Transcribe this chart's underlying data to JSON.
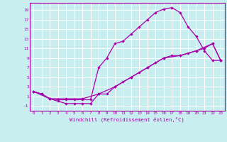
{
  "xlabel": "Windchill (Refroidissement éolien,°C)",
  "bg_color": "#c8eef0",
  "line_color": "#aa00aa",
  "xlim": [
    -0.5,
    23.5
  ],
  "ylim": [
    -2,
    20.5
  ],
  "xticks": [
    0,
    1,
    2,
    3,
    4,
    5,
    6,
    7,
    8,
    9,
    10,
    11,
    12,
    13,
    14,
    15,
    16,
    17,
    18,
    19,
    20,
    21,
    22,
    23
  ],
  "yticks": [
    -1,
    1,
    3,
    5,
    7,
    9,
    11,
    13,
    15,
    17,
    19
  ],
  "line1_x": [
    0,
    1,
    2,
    3,
    4,
    5,
    6,
    7,
    8,
    9,
    10,
    11,
    12,
    13,
    14,
    15,
    16,
    17,
    18,
    19,
    20,
    21,
    22,
    23
  ],
  "line1_y": [
    2,
    1.5,
    0.5,
    0.3,
    0.3,
    0.3,
    0.3,
    0.3,
    7.0,
    9.0,
    12,
    12.5,
    14,
    15.5,
    17,
    18.5,
    19.2,
    19.5,
    18.5,
    15.5,
    13.5,
    10.5,
    8.5,
    8.5
  ],
  "line2_x": [
    0,
    1,
    2,
    3,
    4,
    5,
    6,
    7,
    8,
    9,
    10,
    11,
    12,
    13,
    14,
    15,
    16,
    17,
    18,
    19,
    20,
    21,
    22,
    23
  ],
  "line2_y": [
    2,
    1.5,
    0.5,
    0.0,
    -0.5,
    -0.5,
    -0.5,
    -0.5,
    1.5,
    1.5,
    3.0,
    4.0,
    5.0,
    6.0,
    7.0,
    8.0,
    9.0,
    9.5,
    9.5,
    10.0,
    10.5,
    11.0,
    12.0,
    8.5
  ],
  "line3_x": [
    0,
    2,
    4,
    6,
    8,
    10,
    12,
    14,
    16,
    18,
    20,
    22,
    23
  ],
  "line3_y": [
    2,
    0.5,
    0.5,
    0.5,
    1.5,
    3.0,
    5.0,
    7.0,
    9.0,
    9.5,
    10.5,
    12.0,
    8.5
  ]
}
